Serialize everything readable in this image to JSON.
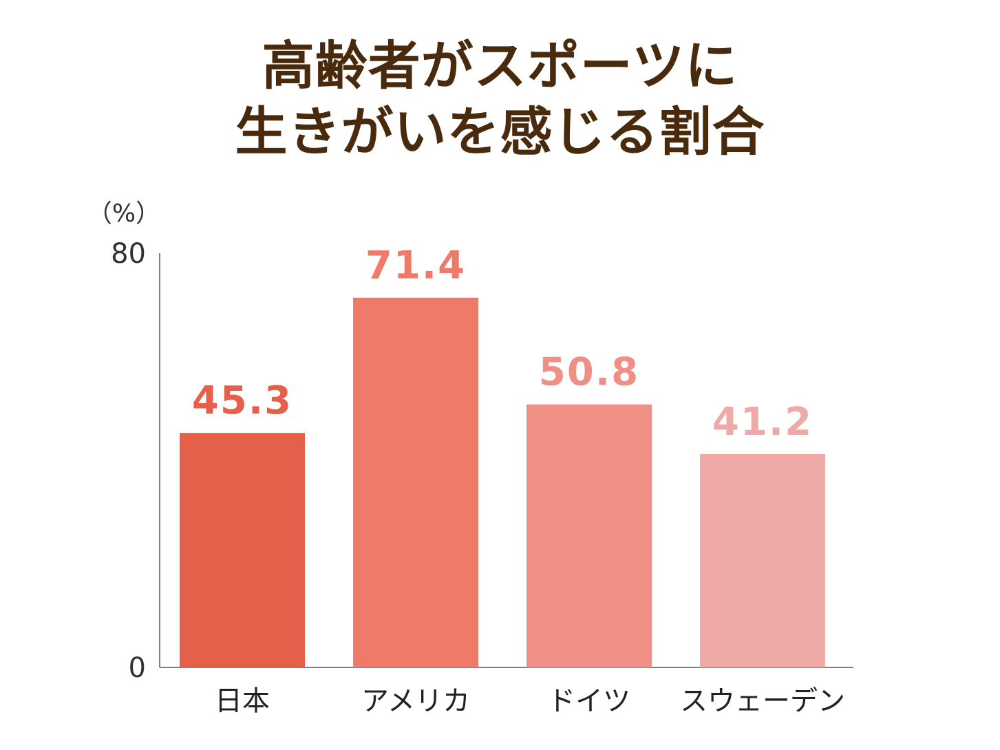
{
  "chart_data": {
    "type": "bar",
    "title_lines": [
      "高齢者がスポーツに",
      "生きがいを感じる割合"
    ],
    "unit": "（%）",
    "categories": [
      "日本",
      "アメリカ",
      "ドイツ",
      "スウェーデン"
    ],
    "values": [
      45.3,
      71.4,
      50.8,
      41.2
    ],
    "value_labels": [
      "45.3",
      "71.4",
      "50.8",
      "41.2"
    ],
    "ylim": [
      0,
      80
    ],
    "y_ticks": [
      {
        "value": 0,
        "label": "0"
      },
      {
        "value": 80,
        "label": "80"
      }
    ],
    "colors": [
      "#e5604a",
      "#f07a6a",
      "#ef8f86",
      "#efaaa8"
    ],
    "label_colors": [
      "#e5604a",
      "#f07a6a",
      "#ef8f86",
      "#efaaa8"
    ],
    "axis_color": "#555555",
    "grid": false,
    "legend": "none"
  }
}
